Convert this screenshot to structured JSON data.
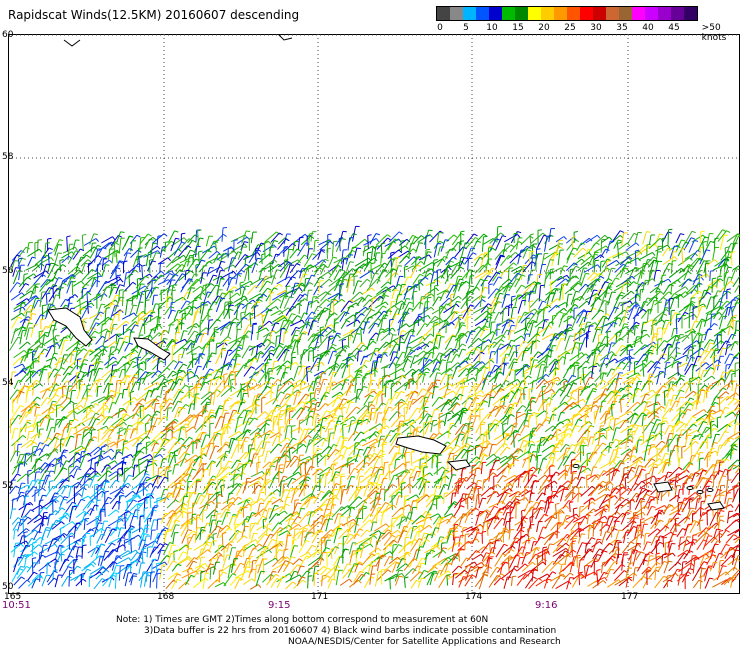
{
  "title": "Rapidscat Winds(12.5KM) 20160607 descending",
  "color_scale": {
    "colors": [
      "#444444",
      "#888888",
      "#00b4ff",
      "#0055ff",
      "#0000cc",
      "#00bb00",
      "#008800",
      "#ffff00",
      "#ffcc00",
      "#ff9900",
      "#ff5500",
      "#ff0000",
      "#cc0000",
      "#cc6633",
      "#996633",
      "#ff00ff",
      "#cc00ff",
      "#9900cc",
      "#660099",
      "#330066"
    ],
    "labels": [
      "0",
      "5",
      "10",
      "15",
      "20",
      "25",
      "30",
      "35",
      "40",
      "45",
      ">50 knots"
    ]
  },
  "lat_labels": [
    "60",
    "58",
    "56",
    "54",
    "52",
    "50"
  ],
  "lon_labels": [
    "165",
    "168",
    "171",
    "174",
    "177"
  ],
  "time_labels": [
    "10:51",
    "9:15",
    "9:16"
  ],
  "notes": [
    "Note: 1) Times are GMT 2)Times along bottom correspond to measurement at 60N",
    "3)Data buffer is 22 hrs from 20160607 4) Black wind barbs indicate possible contamination",
    "NOAA/NESDIS/Center for Satellite Applications and Research"
  ],
  "icons": [
    "coastline-outline",
    "wind-barb"
  ]
}
